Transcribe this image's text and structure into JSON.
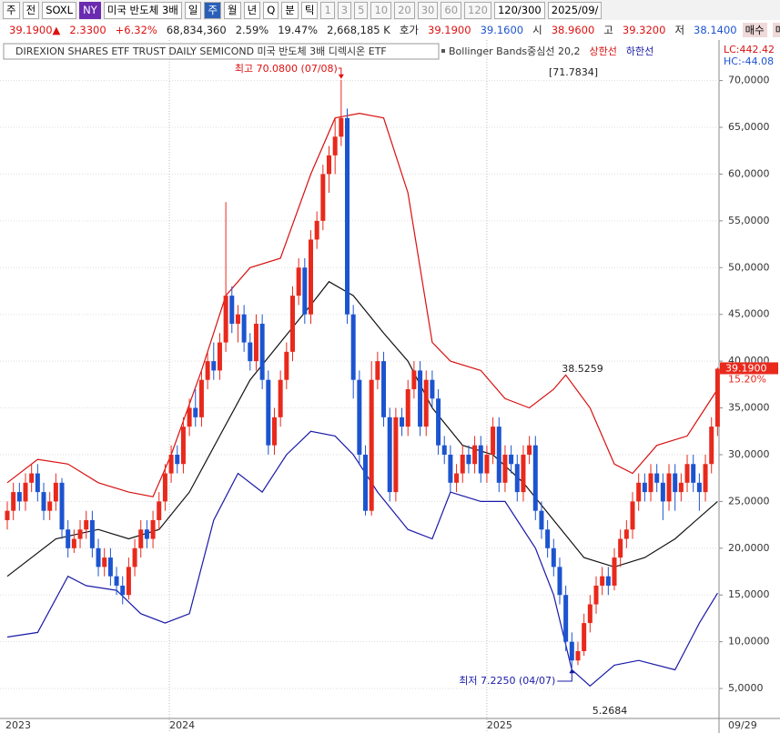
{
  "toolbar": {
    "items": [
      "주",
      "전",
      "SOXL",
      "NY",
      "미국 반도체 3배",
      "일",
      "주",
      "월",
      "년",
      "Q",
      "분",
      "틱",
      "1",
      "3",
      "5",
      "10",
      "20",
      "30",
      "60",
      "120",
      "120/300",
      "2025/09/"
    ]
  },
  "quote": {
    "items": [
      "39.1900▲",
      "2.3300",
      "+6.32%",
      "68,834,360",
      "2.59%",
      "19.47%",
      "2,668,185 K",
      "호가",
      "39.1900",
      "39.1600",
      "시",
      "38.9600",
      "고",
      "39.3200",
      "저",
      "38.1400",
      "매수",
      "매도"
    ]
  },
  "chart_data": {
    "type": "candlestick",
    "title": "DIREXION SHARES ETF TRUST DAILY SEMICOND  미국 반도체 3배 디렉시온 ETF",
    "lc": "LC:442.42",
    "hc": "HC:-44.08",
    "up_color": "#e8291c",
    "down_color": "#1c54d0",
    "ylim": [
      1.8,
      72
    ],
    "yticks": [
      {
        "value": 5,
        "label": "5,0000"
      },
      {
        "value": 10,
        "label": "10,0000"
      },
      {
        "value": 15,
        "label": "15,0000"
      },
      {
        "value": 20,
        "label": "20,0000"
      },
      {
        "value": 25,
        "label": "25,0000"
      },
      {
        "value": 30,
        "label": "30,0000"
      },
      {
        "value": 35,
        "label": "35,0000"
      },
      {
        "value": 40,
        "label": "40,0000"
      },
      {
        "value": 45,
        "label": "45,0000"
      },
      {
        "value": 50,
        "label": "50,0000"
      },
      {
        "value": 55,
        "label": "55,0000"
      },
      {
        "value": 60,
        "label": "60,0000"
      },
      {
        "value": 65,
        "label": "65,0000"
      },
      {
        "value": 70,
        "label": "70,0000"
      }
    ],
    "grid": true,
    "x_labels": [
      {
        "index": 0,
        "label": "2023"
      },
      {
        "index": 27,
        "label": "2024"
      },
      {
        "index": 79.3,
        "label": "2025"
      }
    ],
    "last_date": "09/29",
    "candles": [
      [
        23,
        25,
        22,
        24
      ],
      [
        24,
        27,
        23,
        26
      ],
      [
        26,
        27,
        24,
        25
      ],
      [
        25,
        28,
        24,
        27
      ],
      [
        27,
        29,
        26,
        28
      ],
      [
        28,
        29,
        25,
        26
      ],
      [
        26,
        27,
        23,
        24
      ],
      [
        24,
        26,
        23,
        25
      ],
      [
        25,
        28,
        24,
        27
      ],
      [
        27,
        27.5,
        21,
        22
      ],
      [
        22,
        23,
        19,
        20
      ],
      [
        20,
        22,
        19.5,
        21
      ],
      [
        21,
        23,
        20,
        22
      ],
      [
        22,
        24,
        21,
        23
      ],
      [
        23,
        24,
        19,
        20
      ],
      [
        20,
        21,
        17,
        18
      ],
      [
        18,
        20,
        17,
        19
      ],
      [
        19,
        20,
        16,
        17
      ],
      [
        17,
        18,
        15,
        16
      ],
      [
        16,
        17,
        14,
        15
      ],
      [
        15,
        19,
        14.5,
        18
      ],
      [
        18,
        21,
        17,
        20
      ],
      [
        20,
        23,
        19,
        22
      ],
      [
        22,
        23,
        20,
        21
      ],
      [
        21,
        24,
        20,
        23
      ],
      [
        23,
        26,
        22,
        25
      ],
      [
        25,
        29,
        24,
        28
      ],
      [
        28,
        31,
        27,
        30
      ],
      [
        30,
        31,
        28,
        29
      ],
      [
        29,
        34,
        28,
        33
      ],
      [
        33,
        36,
        32,
        35
      ],
      [
        35,
        37,
        33,
        34
      ],
      [
        34,
        39,
        33,
        38
      ],
      [
        38,
        41,
        37,
        40
      ],
      [
        40,
        42,
        38,
        39
      ],
      [
        39,
        43,
        38,
        42
      ],
      [
        42,
        57,
        41,
        47
      ],
      [
        47,
        48,
        43,
        44
      ],
      [
        44,
        46,
        42,
        45
      ],
      [
        45,
        46,
        41,
        42
      ],
      [
        42,
        43,
        39,
        40
      ],
      [
        40,
        45,
        39,
        44
      ],
      [
        44,
        45,
        37,
        38
      ],
      [
        38,
        39,
        30,
        31
      ],
      [
        31,
        35,
        30,
        34
      ],
      [
        34,
        39,
        33,
        38
      ],
      [
        38,
        42,
        37,
        41
      ],
      [
        41,
        48,
        40,
        47
      ],
      [
        47,
        51,
        46,
        50
      ],
      [
        50,
        51,
        44,
        45
      ],
      [
        45,
        54,
        44,
        53
      ],
      [
        53,
        56,
        52,
        55
      ],
      [
        55,
        61,
        54,
        60
      ],
      [
        60,
        63,
        58,
        62
      ],
      [
        62,
        66,
        60,
        64
      ],
      [
        64,
        70.08,
        63,
        66
      ],
      [
        66,
        67,
        44,
        45
      ],
      [
        45,
        46,
        36,
        38
      ],
      [
        38,
        39,
        29,
        30
      ],
      [
        30,
        31,
        23.5,
        24
      ],
      [
        24,
        40,
        23.5,
        38
      ],
      [
        38,
        41,
        37,
        40
      ],
      [
        40,
        41,
        33,
        34
      ],
      [
        34,
        35,
        25,
        26
      ],
      [
        26,
        35,
        25,
        34
      ],
      [
        34,
        35,
        32,
        33
      ],
      [
        33,
        38,
        32,
        37
      ],
      [
        37,
        40,
        36,
        39
      ],
      [
        39,
        40,
        32,
        33
      ],
      [
        33,
        39,
        32,
        38
      ],
      [
        38,
        39,
        35,
        36
      ],
      [
        36,
        37,
        30,
        31
      ],
      [
        31,
        32,
        29,
        30
      ],
      [
        30,
        31,
        26,
        27
      ],
      [
        27,
        29,
        26,
        28
      ],
      [
        28,
        31,
        27,
        30
      ],
      [
        30,
        31,
        28,
        29
      ],
      [
        29,
        32,
        28,
        31
      ],
      [
        31,
        32,
        27,
        28
      ],
      [
        28,
        31,
        27,
        30
      ],
      [
        30,
        34,
        29,
        33
      ],
      [
        33,
        34,
        26,
        27
      ],
      [
        27,
        31,
        26,
        30
      ],
      [
        30,
        31,
        28,
        29
      ],
      [
        29,
        30,
        25,
        26
      ],
      [
        26,
        31,
        25,
        30
      ],
      [
        30,
        32,
        29,
        31
      ],
      [
        31,
        32,
        23,
        24
      ],
      [
        24,
        25,
        21,
        22
      ],
      [
        22,
        23,
        19,
        20
      ],
      [
        20,
        21,
        17,
        18
      ],
      [
        18,
        19,
        14,
        15
      ],
      [
        15,
        16,
        9,
        10
      ],
      [
        10,
        11,
        7.225,
        8
      ],
      [
        8,
        10,
        7.5,
        9
      ],
      [
        9,
        13,
        8.5,
        12
      ],
      [
        12,
        15,
        11,
        14
      ],
      [
        14,
        17,
        13,
        16
      ],
      [
        16,
        18,
        15,
        17
      ],
      [
        17,
        18,
        15,
        16
      ],
      [
        16,
        20,
        15.5,
        19
      ],
      [
        19,
        22,
        18,
        21
      ],
      [
        21,
        23,
        20,
        22
      ],
      [
        22,
        26,
        21,
        25
      ],
      [
        25,
        28,
        24,
        27
      ],
      [
        27,
        28,
        25,
        26
      ],
      [
        26,
        29,
        25,
        28
      ],
      [
        28,
        29,
        26,
        27
      ],
      [
        27,
        28,
        23,
        25
      ],
      [
        25,
        29,
        24,
        28
      ],
      [
        28,
        29,
        24,
        26
      ],
      [
        26,
        28,
        25,
        27
      ],
      [
        27,
        30,
        26,
        29
      ],
      [
        29,
        30,
        26,
        27
      ],
      [
        27,
        28,
        24,
        26
      ],
      [
        26,
        30,
        25,
        29
      ],
      [
        29,
        34,
        28,
        33
      ],
      [
        33,
        39.32,
        32,
        39.19
      ]
    ],
    "series": [
      {
        "name": "Bollinger Bands중심선 20,2",
        "color": "#111111",
        "x": [
          0,
          8,
          15,
          20,
          25,
          30,
          35,
          40,
          45,
          50,
          53,
          57,
          62,
          66,
          70,
          75,
          80,
          85,
          90,
          95,
          100,
          105,
          110,
          117
        ],
        "values": [
          17,
          21,
          22,
          21,
          22,
          26,
          32,
          38,
          42,
          46,
          48.5,
          47,
          43,
          40,
          35,
          31,
          30,
          27,
          23,
          19,
          18,
          19,
          21,
          25
        ]
      },
      {
        "name": "상한선",
        "color": "#d81010",
        "x": [
          0,
          5,
          10,
          15,
          20,
          24,
          27,
          32,
          36,
          40,
          45,
          50,
          54,
          58,
          62,
          66,
          70,
          73,
          78,
          82,
          86,
          90,
          92,
          96,
          100,
          103,
          107,
          112,
          117
        ],
        "values": [
          27,
          29.5,
          29,
          27,
          26,
          25.5,
          30,
          39,
          47,
          50,
          51,
          60,
          66,
          66.5,
          66,
          58,
          42,
          40,
          39,
          36,
          35,
          37,
          38.5259,
          35,
          29,
          28,
          31,
          32,
          37
        ]
      },
      {
        "name": "하한선",
        "color": "#1a1aa8",
        "x": [
          0,
          5,
          10,
          13,
          18,
          22,
          26,
          30,
          34,
          38,
          42,
          46,
          50,
          54,
          57,
          61,
          66,
          70,
          73,
          78,
          82,
          87,
          90,
          93,
          96,
          100,
          104,
          110,
          114,
          117
        ],
        "values": [
          10.5,
          11,
          17,
          16,
          15.5,
          13,
          12,
          13,
          23,
          28,
          26,
          30,
          32.5,
          32,
          30,
          26,
          22,
          21,
          26,
          25,
          25,
          20,
          15,
          7,
          5.2684,
          7.5,
          8,
          7,
          12,
          15.2
        ]
      }
    ],
    "annotations": {
      "high": "최고 70.0800 (07/08)",
      "high_index": 55,
      "low": "최저 7.2250 (04/07)",
      "low_index": 93,
      "top_value": "[71.7834]",
      "upper_peak": "38.5259",
      "lower_min": "5.2684"
    },
    "last_price": {
      "value": 39.19,
      "label": "39.1900",
      "change": "15.20%"
    }
  }
}
